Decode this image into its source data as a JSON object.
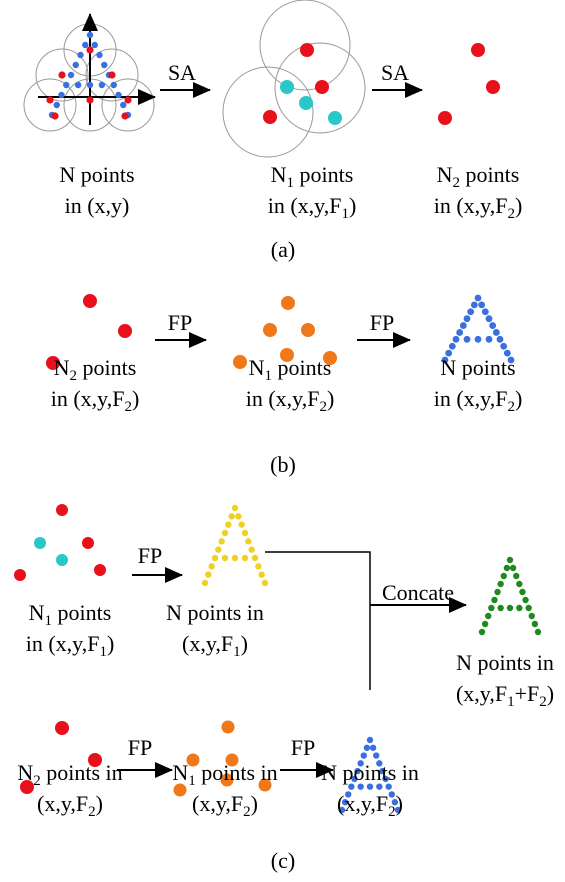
{
  "panels": [
    {
      "caption": "(a)",
      "arrows": [
        "SA",
        "SA"
      ],
      "labels": [
        {
          "lines": [
            [
              "N points"
            ],
            [
              "in (x,y)"
            ]
          ]
        },
        {
          "lines": [
            [
              "N",
              {
                "sub": "1"
              },
              " points"
            ],
            [
              "in (x,y,F",
              {
                "sub": "1"
              },
              ")"
            ]
          ]
        },
        {
          "lines": [
            [
              "N",
              {
                "sub": "2"
              },
              " points"
            ],
            [
              "in (x,y,F",
              {
                "sub": "2"
              },
              ")"
            ]
          ]
        }
      ]
    },
    {
      "caption": "(b)",
      "arrows": [
        "FP",
        "FP"
      ],
      "labels": [
        {
          "lines": [
            [
              "N",
              {
                "sub": "2"
              },
              " points"
            ],
            [
              "in (x,y,F",
              {
                "sub": "2"
              },
              ")"
            ]
          ]
        },
        {
          "lines": [
            [
              "N",
              {
                "sub": "1"
              },
              " points"
            ],
            [
              "in (x,y,F",
              {
                "sub": "2"
              },
              ")"
            ]
          ]
        },
        {
          "lines": [
            [
              "N points"
            ],
            [
              "in (x,y,F",
              {
                "sub": "2"
              },
              ")"
            ]
          ]
        }
      ]
    },
    {
      "caption": "(c)",
      "arrows": [
        "FP",
        "Concate",
        "FP",
        "FP"
      ],
      "labels": [
        {
          "lines": [
            [
              "N",
              {
                "sub": "1"
              },
              " points"
            ],
            [
              "in (x,y,F",
              {
                "sub": "1"
              },
              ")"
            ]
          ]
        },
        {
          "lines": [
            [
              "N points in"
            ],
            [
              "(x,y,F",
              {
                "sub": "1"
              },
              ")"
            ]
          ]
        },
        {
          "lines": [
            [
              "N points in"
            ],
            [
              "(x,y,F",
              {
                "sub": "1"
              },
              "+F",
              {
                "sub": "2"
              },
              ")"
            ]
          ]
        },
        {
          "lines": [
            [
              "N",
              {
                "sub": "2"
              },
              " points in"
            ],
            [
              "(x,y,F",
              {
                "sub": "2"
              },
              ")"
            ]
          ]
        },
        {
          "lines": [
            [
              "N",
              {
                "sub": "1"
              },
              " points in"
            ],
            [
              "(x,y,F",
              {
                "sub": "2"
              },
              ")"
            ]
          ]
        },
        {
          "lines": [
            [
              "N points in"
            ],
            [
              "(x,y,F",
              {
                "sub": "2"
              },
              ")"
            ]
          ]
        }
      ]
    }
  ]
}
